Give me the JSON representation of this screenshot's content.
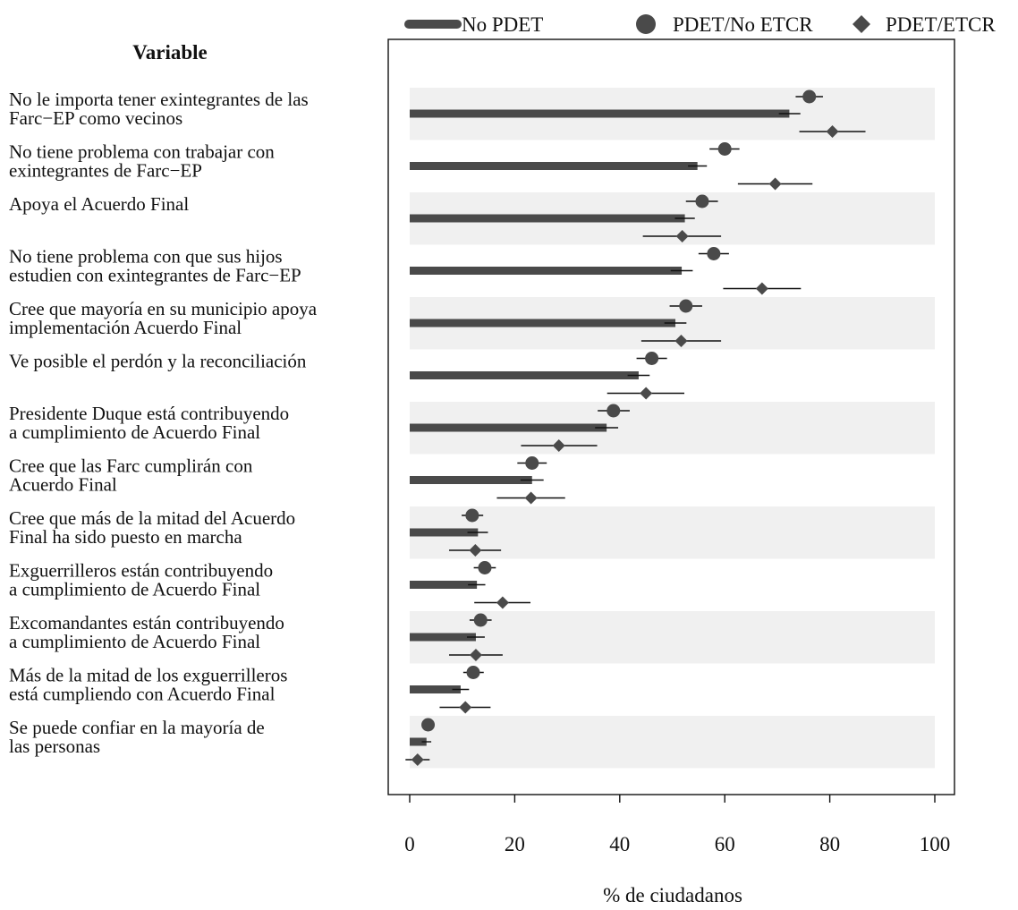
{
  "chart_data": {
    "type": "bar",
    "ylabel": "Variable",
    "xlabel": "% de ciudadanos",
    "xlim": [
      0,
      100
    ],
    "xticks": [
      0,
      20,
      40,
      60,
      80,
      100
    ],
    "grid": false,
    "banding": "alternating grey bands on rows 1,3,5,...",
    "legend": {
      "placement": "top",
      "entries": [
        {
          "label": "No PDET",
          "marker": "bar"
        },
        {
          "label": "PDET/No ETCR",
          "marker": "circle"
        },
        {
          "label": "PDET/ETCR",
          "marker": "diamond"
        }
      ]
    },
    "categories": [
      [
        "No le importa tener exintegrantes de las",
        "Farc−EP como vecinos"
      ],
      [
        "No tiene problema con trabajar con",
        "exintegrantes de Farc−EP"
      ],
      [
        "Apoya el Acuerdo Final"
      ],
      [
        "No tiene problema con que sus hijos",
        "estudien con exintegrantes de Farc−EP"
      ],
      [
        "Cree que mayoría en su municipio apoya",
        "implementación Acuerdo Final"
      ],
      [
        "Ve posible el perdón y la reconciliación"
      ],
      [
        "Presidente Duque está contribuyendo",
        "a cumplimiento de Acuerdo Final"
      ],
      [
        "Cree que las Farc cumplirán con",
        "Acuerdo Final"
      ],
      [
        "Cree que más de la mitad del Acuerdo",
        "Final ha sido puesto en marcha"
      ],
      [
        "Exguerrilleros están contribuyendo",
        "a cumplimiento de Acuerdo Final"
      ],
      [
        "Excomandantes están contribuyendo",
        "a cumplimiento de Acuerdo Final"
      ],
      [
        "Más de la mitad de los exguerrilleros",
        "está cumpliendo con Acuerdo Final"
      ],
      [
        "Se puede confiar en la mayoría de",
        "las personas"
      ]
    ],
    "series": [
      {
        "name": "No PDET",
        "marker": "bar",
        "color": "#4a4a4a",
        "values": [
          72.3,
          54.8,
          52.4,
          51.8,
          50.6,
          43.6,
          37.5,
          23.3,
          13.0,
          12.8,
          12.6,
          9.7,
          3.2
        ],
        "ci_low": [
          70.3,
          53.0,
          50.5,
          49.7,
          48.5,
          41.5,
          35.3,
          21.1,
          11.0,
          11.1,
          10.9,
          8.1,
          2.3
        ],
        "ci_high": [
          74.4,
          56.6,
          54.3,
          53.9,
          52.7,
          45.7,
          39.7,
          25.5,
          14.9,
          14.4,
          14.3,
          11.3,
          4.1
        ]
      },
      {
        "name": "PDET/No ETCR",
        "marker": "circle",
        "color": "#4a4a4a",
        "values": [
          76.1,
          60.0,
          55.7,
          57.9,
          52.6,
          46.1,
          38.8,
          23.3,
          11.9,
          14.3,
          13.5,
          12.1,
          3.5
        ],
        "ci_low": [
          73.5,
          57.1,
          52.6,
          55.0,
          49.5,
          43.2,
          35.8,
          20.5,
          9.9,
          12.2,
          11.4,
          10.2,
          3.5
        ],
        "ci_high": [
          78.7,
          62.8,
          58.7,
          60.8,
          55.7,
          49.0,
          41.9,
          26.1,
          14.0,
          16.4,
          15.6,
          14.1,
          3.5
        ]
      },
      {
        "name": "PDET/ETCR",
        "marker": "diamond",
        "color": "#4a4a4a",
        "values": [
          80.5,
          69.6,
          51.9,
          67.1,
          51.7,
          45.0,
          28.4,
          23.1,
          12.5,
          17.7,
          12.6,
          10.6,
          1.5
        ],
        "ci_low": [
          74.2,
          62.5,
          44.4,
          59.7,
          44.1,
          37.6,
          21.2,
          16.6,
          7.5,
          12.3,
          7.5,
          5.7,
          -0.8
        ],
        "ci_high": [
          86.8,
          76.7,
          59.3,
          74.5,
          59.3,
          52.3,
          35.7,
          29.6,
          17.4,
          23.0,
          17.7,
          15.4,
          3.8
        ]
      }
    ]
  }
}
